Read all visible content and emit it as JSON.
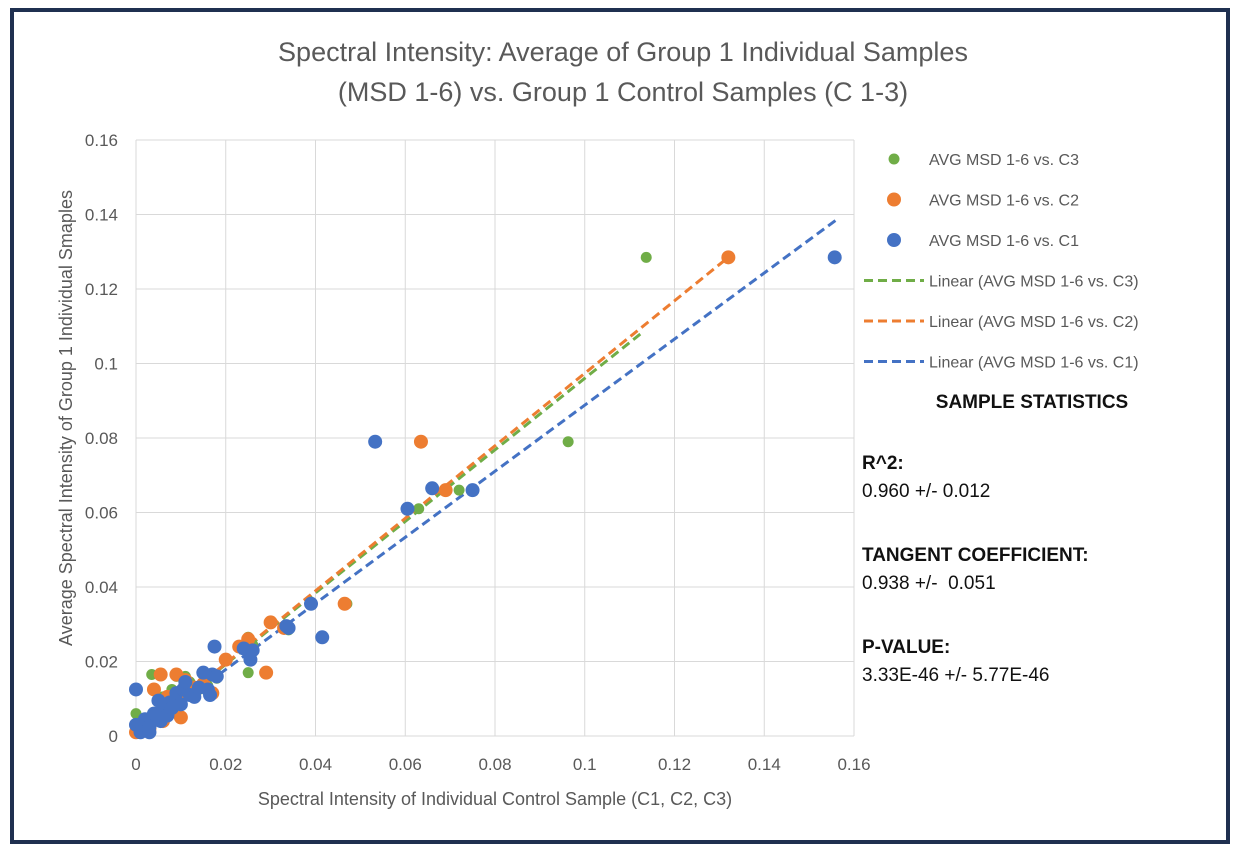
{
  "chart_data": {
    "type": "scatter",
    "title_line1": "Spectral Intensity: Average of Group 1 Individual Samples",
    "title_line2": "(MSD 1-6) vs. Group 1 Control Samples (C 1-3)",
    "xlabel": "Spectral Intensity of Individual Control Sample (C1, C2, C3)",
    "ylabel": "Average Spectral Intensity of Group 1 Individual Smaples",
    "xlim": [
      0,
      0.16
    ],
    "ylim": [
      0,
      0.16
    ],
    "x_ticks": [
      "0",
      "0.02",
      "0.04",
      "0.06",
      "0.08",
      "0.1",
      "0.12",
      "0.14",
      "0.16"
    ],
    "y_ticks": [
      "0",
      "0.02",
      "0.04",
      "0.06",
      "0.08",
      "0.1",
      "0.12",
      "0.14",
      "0.16"
    ],
    "grid": true,
    "series": [
      {
        "name": "AVG MSD 1-6 vs. C3",
        "color": "#70ad47",
        "trend_label": "Linear (AVG MSD 1-6 vs. C3)",
        "trend": {
          "x": [
            0.001,
            0.113
          ],
          "y": [
            0.001,
            0.1085
          ]
        },
        "points": [
          [
            0.0,
            0.006
          ],
          [
            0.0035,
            0.0165
          ],
          [
            0.004,
            0.0125
          ],
          [
            0.006,
            0.0105
          ],
          [
            0.007,
            0.0095
          ],
          [
            0.008,
            0.0125
          ],
          [
            0.009,
            0.016
          ],
          [
            0.011,
            0.016
          ],
          [
            0.012,
            0.0145
          ],
          [
            0.014,
            0.0125
          ],
          [
            0.016,
            0.0135
          ],
          [
            0.018,
            0.0155
          ],
          [
            0.02,
            0.0205
          ],
          [
            0.025,
            0.0265
          ],
          [
            0.025,
            0.017
          ],
          [
            0.026,
            0.0245
          ],
          [
            0.03,
            0.0305
          ],
          [
            0.034,
            0.0285
          ],
          [
            0.047,
            0.0355
          ],
          [
            0.063,
            0.061
          ],
          [
            0.069,
            0.066
          ],
          [
            0.072,
            0.066
          ],
          [
            0.0963,
            0.079
          ],
          [
            0.1137,
            0.1285
          ],
          [
            0.003,
            0.003
          ],
          [
            0.005,
            0.005
          ],
          [
            0.008,
            0.008
          ],
          [
            0.012,
            0.012
          ]
        ]
      },
      {
        "name": "AVG MSD 1-6 vs. C2",
        "color": "#ed7d31",
        "trend_label": "Linear (AVG MSD 1-6 vs. C2)",
        "trend": {
          "x": [
            0.001,
            0.1325
          ],
          "y": [
            0.001,
            0.129
          ]
        },
        "points": [
          [
            0.0,
            0.001
          ],
          [
            0.002,
            0.002
          ],
          [
            0.004,
            0.0125
          ],
          [
            0.0055,
            0.0165
          ],
          [
            0.007,
            0.0105
          ],
          [
            0.008,
            0.0065
          ],
          [
            0.009,
            0.0165
          ],
          [
            0.0095,
            0.0115
          ],
          [
            0.01,
            0.005
          ],
          [
            0.011,
            0.015
          ],
          [
            0.013,
            0.013
          ],
          [
            0.015,
            0.014
          ],
          [
            0.017,
            0.0115
          ],
          [
            0.02,
            0.0205
          ],
          [
            0.023,
            0.024
          ],
          [
            0.025,
            0.026
          ],
          [
            0.029,
            0.017
          ],
          [
            0.03,
            0.0305
          ],
          [
            0.033,
            0.029
          ],
          [
            0.0465,
            0.0355
          ],
          [
            0.0635,
            0.079
          ],
          [
            0.069,
            0.066
          ],
          [
            0.132,
            0.1285
          ],
          [
            0.006,
            0.004
          ],
          [
            0.003,
            0.002
          ]
        ]
      },
      {
        "name": "AVG MSD 1-6 vs. C1",
        "color": "#4472c4",
        "trend_label": "Linear (AVG MSD 1-6 vs. C1)",
        "trend": {
          "x": [
            0.001,
            0.156
          ],
          "y": [
            0.001,
            0.1385
          ]
        },
        "points": [
          [
            0.0,
            0.0125
          ],
          [
            0.0,
            0.003
          ],
          [
            0.001,
            0.001
          ],
          [
            0.002,
            0.0045
          ],
          [
            0.003,
            0.001
          ],
          [
            0.004,
            0.006
          ],
          [
            0.005,
            0.0095
          ],
          [
            0.0055,
            0.004
          ],
          [
            0.006,
            0.007
          ],
          [
            0.007,
            0.0055
          ],
          [
            0.0075,
            0.009
          ],
          [
            0.008,
            0.0075
          ],
          [
            0.009,
            0.0115
          ],
          [
            0.01,
            0.0085
          ],
          [
            0.0105,
            0.0125
          ],
          [
            0.011,
            0.0145
          ],
          [
            0.012,
            0.011
          ],
          [
            0.013,
            0.0105
          ],
          [
            0.014,
            0.013
          ],
          [
            0.015,
            0.017
          ],
          [
            0.016,
            0.0125
          ],
          [
            0.0165,
            0.011
          ],
          [
            0.017,
            0.0165
          ],
          [
            0.0175,
            0.024
          ],
          [
            0.018,
            0.016
          ],
          [
            0.024,
            0.0235
          ],
          [
            0.0255,
            0.0205
          ],
          [
            0.026,
            0.023
          ],
          [
            0.0335,
            0.0295
          ],
          [
            0.034,
            0.029
          ],
          [
            0.039,
            0.0355
          ],
          [
            0.0415,
            0.0265
          ],
          [
            0.0533,
            0.079
          ],
          [
            0.0605,
            0.061
          ],
          [
            0.066,
            0.0665
          ],
          [
            0.075,
            0.066
          ],
          [
            0.1557,
            0.1285
          ],
          [
            0.003,
            0.0025
          ],
          [
            0.0045,
            0.0055
          ]
        ]
      }
    ]
  },
  "stats": {
    "heading": "SAMPLE STATISTICS",
    "r2_label": "R^2:",
    "r2_value": "0.960 +/- 0.012",
    "tangent_label": "TANGENT COEFFICIENT:",
    "tangent_value": "0.938 +/-  0.051",
    "pvalue_label": "P-VALUE:",
    "pvalue_value": "3.33E-46 +/- 5.77E-46"
  }
}
